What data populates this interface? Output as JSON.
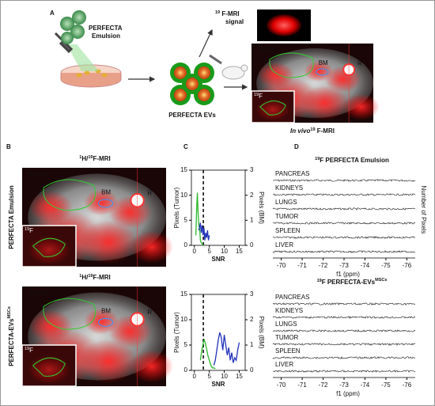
{
  "panel_a": {
    "label": "A",
    "emulsion": [
      "PERFECTA",
      "Emulsion"
    ],
    "signal": {
      "sup": "19",
      "text": " F-MRI",
      "line2": "signal"
    },
    "evs": "PERFECTA EVs",
    "image_labels": {
      "tumor": "Tumor",
      "bm": "BM",
      "r": "R",
      "inset": {
        "sup": "19",
        "text": "F"
      }
    },
    "caption": {
      "italic": "In vivo",
      "sup": "19",
      "text": " F-MRI"
    }
  },
  "panel_b": {
    "label": "B",
    "rows": [
      {
        "title": {
          "sup1": "1",
          "mid": "H/",
          "sup2": "19",
          "text": "F-MRI"
        },
        "row_label": {
          "text": "PERFECTA Emulsion"
        },
        "image_labels": {
          "tumor": "Tumor",
          "bm": "BM",
          "r": "R",
          "inset": {
            "sup": "19",
            "text": "F"
          }
        }
      },
      {
        "title": {
          "sup1": "1",
          "mid": "H/",
          "sup2": "19",
          "text": "F-MRI"
        },
        "row_label": {
          "text": "PERFECTA-EVs",
          "sup": "MSCs"
        },
        "image_labels": {
          "tumor": "Tumor",
          "bm": "BM",
          "r": "R",
          "inset": {
            "sup": "19",
            "text": "F"
          }
        }
      }
    ]
  },
  "panel_c": {
    "label": "C",
    "charts": [
      {
        "type": "line",
        "xlabel": "SNR",
        "ylabel": "Pixels (Tumor)",
        "y2label": "Pixels (BM)",
        "xlim": [
          -1,
          17
        ],
        "ylim": [
          0,
          15
        ],
        "y2lim": [
          0,
          3
        ],
        "xticks": [
          0,
          5,
          10,
          15
        ],
        "yticks": [
          0,
          5,
          10,
          15
        ],
        "y2ticks": [
          0,
          1,
          2,
          3
        ],
        "threshold": 3,
        "series": [
          {
            "color": "#2db82d",
            "x": [
              0.5,
              0.8,
              1,
              1.2,
              1.5,
              1.8,
              2,
              2.3,
              2.6,
              3
            ],
            "values": [
              2,
              8,
              10.5,
              7,
              4,
              3,
              1,
              0.5,
              0.3,
              0
            ]
          },
          {
            "color": "#2233bb",
            "axis": "y2",
            "x": [
              1.5,
              2,
              2.3,
              2.6,
              2.9,
              3.2,
              3.5,
              3.8,
              4.1,
              4.4,
              4.7,
              5
            ],
            "values": [
              0.6,
              0.9,
              0.5,
              0.8,
              0.4,
              0.7,
              0.2,
              0.5,
              0.3,
              0.6,
              0.2,
              0.4
            ]
          }
        ]
      },
      {
        "type": "line",
        "xlabel": "SNR",
        "ylabel": "Pixels (Tumor)",
        "y2label": "Pixels (BM)",
        "xlim": [
          -1,
          17
        ],
        "ylim": [
          0,
          15
        ],
        "y2lim": [
          0,
          3
        ],
        "xticks": [
          0,
          5,
          10,
          15
        ],
        "yticks": [
          0,
          5,
          10,
          15
        ],
        "y2ticks": [
          0,
          1,
          2,
          3
        ],
        "threshold": 3,
        "series": [
          {
            "color": "#2db82d",
            "x": [
              2,
              2.5,
              3,
              3.3,
              3.6,
              4,
              4.5,
              5,
              5.5,
              6,
              6.5,
              7
            ],
            "values": [
              2,
              4,
              5.5,
              6,
              5.5,
              4.5,
              3,
              2,
              1,
              0.5,
              0.5,
              0.3
            ]
          },
          {
            "color": "#2233bb",
            "axis": "y2",
            "x": [
              6.5,
              7,
              8,
              8.5,
              9,
              9.5,
              10,
              10.5,
              11,
              11.5,
              12,
              12.5,
              13,
              13.5,
              14,
              14.5,
              15
            ],
            "values": [
              0.2,
              0.4,
              1.2,
              1.5,
              1.3,
              0.8,
              1.4,
              1,
              0.6,
              0.9,
              0.4,
              0.7,
              0.3,
              0.5,
              0.4,
              0.8,
              1.1
            ]
          }
        ]
      }
    ]
  },
  "panel_d": {
    "label": "D",
    "ylabel": "Number of Pixels",
    "spectra": [
      {
        "title": {
          "sup": "19",
          "text": "F PERFECTA Emulsion"
        },
        "traces": [
          "PANCREAS",
          "KIDNEYS",
          "LUNGS",
          "TUMOR",
          "SPLEEN",
          "LIVER"
        ],
        "xlabel": "f1 (ppm)",
        "xlim": [
          -69.6,
          -76.4
        ],
        "xticks": [
          -70,
          -71,
          -72,
          -73,
          -74,
          -75,
          -76
        ]
      },
      {
        "title": {
          "sup": "19",
          "text": "F PERFECTA-EVs",
          "sup2": "MSCs"
        },
        "traces": [
          "PANCREAS",
          "KIDNEYS",
          "LUNGS",
          "TUMOR",
          "SPLEEN",
          "LIVER"
        ],
        "xlabel": "f1 (ppm)",
        "xlim": [
          -69.6,
          -76.4
        ],
        "xticks": [
          -70,
          -71,
          -72,
          -73,
          -74,
          -75,
          -76
        ]
      }
    ]
  }
}
